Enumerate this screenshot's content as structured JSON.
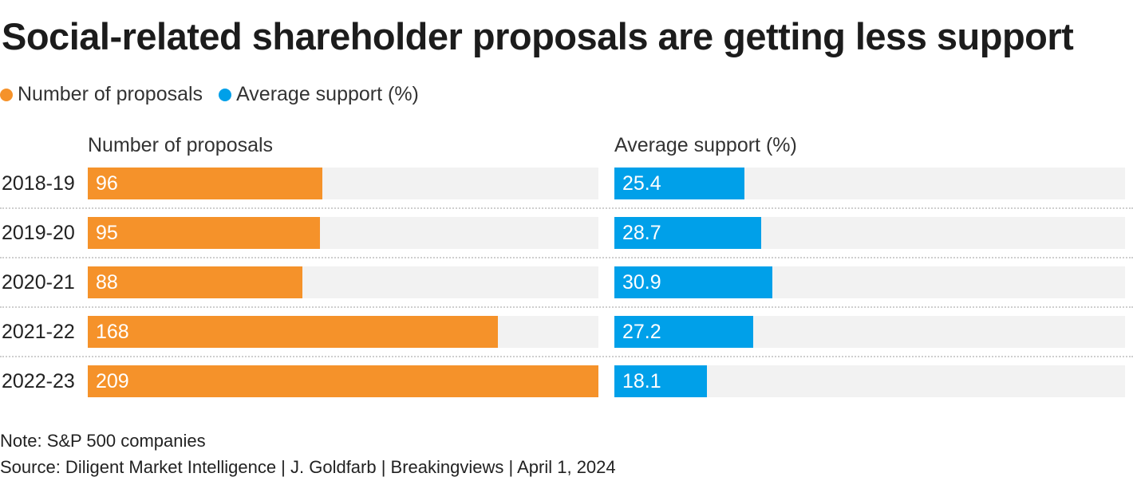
{
  "chart_data": {
    "type": "bar",
    "orientation": "horizontal",
    "title": "Social-related shareholder proposals are getting less support",
    "legend": [
      {
        "label": "Number of proposals",
        "color": "#f5922a"
      },
      {
        "label": "Average support (%)",
        "color": "#00a0e9"
      }
    ],
    "legend_position": "top-left",
    "categories": [
      "2018-19",
      "2019-20",
      "2020-21",
      "2021-22",
      "2022-23"
    ],
    "series": [
      {
        "name": "Number of proposals",
        "header": "Number of proposals",
        "color": "#f5922a",
        "values": [
          96,
          95,
          88,
          168,
          209
        ],
        "labels": [
          "96",
          "95",
          "88",
          "168",
          "209"
        ],
        "xlim": [
          0,
          209
        ]
      },
      {
        "name": "Average support (%)",
        "header": "Average support (%)",
        "color": "#00a0e9",
        "values": [
          25.4,
          28.7,
          30.9,
          27.2,
          18.1
        ],
        "labels": [
          "25.4",
          "28.7",
          "30.9",
          "27.2",
          "18.1"
        ],
        "xlim": [
          0,
          100
        ]
      }
    ],
    "track_color": "#f2f2f2",
    "grid": false,
    "note": "Note: S&P 500 companies",
    "source": "Source: Diligent Market Intelligence | J. Goldfarb | Breakingviews | April 1, 2024"
  }
}
